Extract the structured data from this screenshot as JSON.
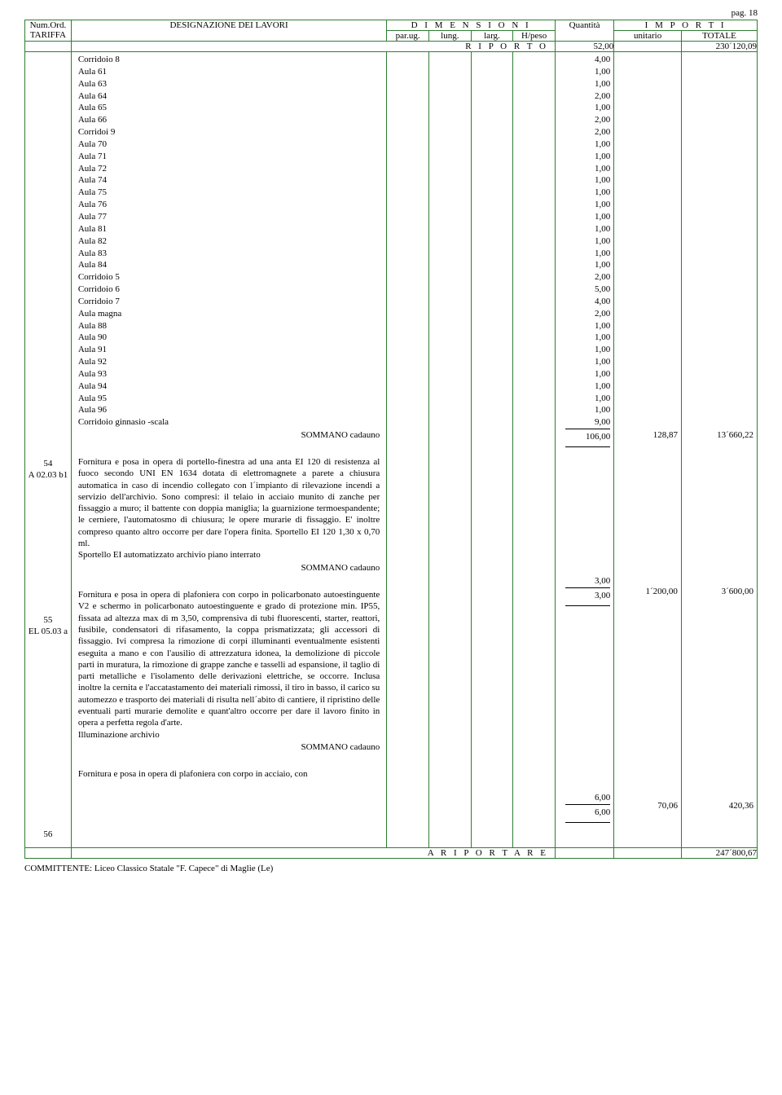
{
  "page_label": "pag. 18",
  "header": {
    "num_ord": "Num.Ord.",
    "tariffa": "TARIFFA",
    "designazione": "DESIGNAZIONE DEI LAVORI",
    "dimensioni": "D I M E N S I O N I",
    "importi": "I M P O R T I",
    "parug": "par.ug.",
    "lung": "lung.",
    "larg": "larg.",
    "hpeso": "H/peso",
    "quantita": "Quantità",
    "unitario": "unitario",
    "totale": "TOTALE"
  },
  "riporto": {
    "label": "R I P O R T O",
    "qta": "52,00",
    "tot": "230´120,09"
  },
  "block1": {
    "rows": [
      {
        "label": "Corridoio 8",
        "val": "4,00"
      },
      {
        "label": "Aula 61",
        "val": "1,00"
      },
      {
        "label": "Aula 63",
        "val": "1,00"
      },
      {
        "label": "Aula 64",
        "val": "2,00"
      },
      {
        "label": "Aula 65",
        "val": "1,00"
      },
      {
        "label": "Aula 66",
        "val": "2,00"
      },
      {
        "label": "Corridoi 9",
        "val": "2,00"
      },
      {
        "label": "Aula 70",
        "val": "1,00"
      },
      {
        "label": "Aula 71",
        "val": "1,00"
      },
      {
        "label": "Aula 72",
        "val": "1,00"
      },
      {
        "label": "Aula 74",
        "val": "1,00"
      },
      {
        "label": "Aula 75",
        "val": "1,00"
      },
      {
        "label": "Aula 76",
        "val": "1,00"
      },
      {
        "label": "Aula 77",
        "val": "1,00"
      },
      {
        "label": "Aula 81",
        "val": "1,00"
      },
      {
        "label": "Aula 82",
        "val": "1,00"
      },
      {
        "label": "Aula 83",
        "val": "1,00"
      },
      {
        "label": "Aula 84",
        "val": "1,00"
      },
      {
        "label": "Corridoio 5",
        "val": "2,00"
      },
      {
        "label": "Corridoio 6",
        "val": "5,00"
      },
      {
        "label": "Corridoio 7",
        "val": "4,00"
      },
      {
        "label": "Aula magna",
        "val": "2,00"
      },
      {
        "label": "Aula 88",
        "val": "1,00"
      },
      {
        "label": "Aula 90",
        "val": "1,00"
      },
      {
        "label": "Aula 91",
        "val": "1,00"
      },
      {
        "label": "Aula 92",
        "val": "1,00"
      },
      {
        "label": "Aula 93",
        "val": "1,00"
      },
      {
        "label": "Aula 94",
        "val": "1,00"
      },
      {
        "label": "Aula 95",
        "val": "1,00"
      },
      {
        "label": "Aula 96",
        "val": "1,00"
      },
      {
        "label": "Corridoio ginnasio -scala",
        "val": "9,00"
      }
    ],
    "sommano_label": "SOMMANO cadauno",
    "sommano_qta": "106,00",
    "sommano_unit": "128,87",
    "sommano_tot": "13´660,22"
  },
  "block2": {
    "num": "54",
    "code": "A 02.03 b1",
    "text": "Fornitura e posa in opera di portello-finestra ad una anta EI 120 di resistenza al fuoco secondo UNI EN 1634 dotata di elettromagnete a parete a chiusura automatica in caso di incendio collegato con l´impianto di rilevazione incendi a servizio dell'archivio. Sono compresi: il telaio in acciaio munito di zanche per fissaggio a muro; il battente con doppia maniglia; la guarnizione termoespandente; le cerniere, l'automatosmo di chiusura; le opere murarie di fissaggio. E' inoltre compreso quanto altro occorre per dare l'opera finita. Sportello EI 120 1,30 x 0,70 ml.",
    "line_label": "Sportello EI automatizzato archivio piano interrato",
    "line_val": "3,00",
    "sommano_label": "SOMMANO cadauno",
    "sommano_qta": "3,00",
    "sommano_unit": "1´200,00",
    "sommano_tot": "3´600,00"
  },
  "block3": {
    "num": "55",
    "code": "EL 05.03 a",
    "text": "Fornitura e posa in opera di plafoniera con corpo in policarbonato autoestinguente V2 e schermo in policarbonato autoestinguente e grado di protezione min. IP55, fissata ad altezza max di m 3,50, comprensiva di tubi fluorescenti, starter, reattori, fusibile, condensatori di rifasamento, la coppa prismatizzata; gli accessori di fissaggio. Ivi compresa la rimozione di corpi illuminanti eventualmente esistenti eseguita a mano e con l'ausilio di attrezzatura idonea, la demolizione di piccole parti in muratura, la rimozione di grappe zanche e tasselli ad espansione, il taglio di parti metalliche e l'isolamento delle derivazioni elettriche, se occorre. Inclusa inoltre la cernita e l'accatastamento dei materiali rimossi, il tiro in basso, il carico su automezzo e trasporto dei materiali di risulta nell´abito di cantiere, il ripristino delle eventuali parti murarie demolite e quant'altro occorre per dare il lavoro finito in opera a perfetta regola d'arte.",
    "line_label": "Illuminazione archivio",
    "line_val": "6,00",
    "sommano_label": "SOMMANO cadauno",
    "sommano_qta": "6,00",
    "sommano_unit": "70,06",
    "sommano_tot": "420,36"
  },
  "block4": {
    "num": "56",
    "text": "Fornitura e posa in opera di plafoniera con corpo in acciaio, con"
  },
  "riportare": {
    "label": "A   R I P O R T A R E",
    "tot": "247´800,67"
  },
  "committente": "COMMITTENTE: Liceo Classico Statale \"F. Capece\" di Maglie (Le)",
  "colors": {
    "border": "#2e7d32",
    "text": "#000000",
    "bg": "#ffffff"
  }
}
